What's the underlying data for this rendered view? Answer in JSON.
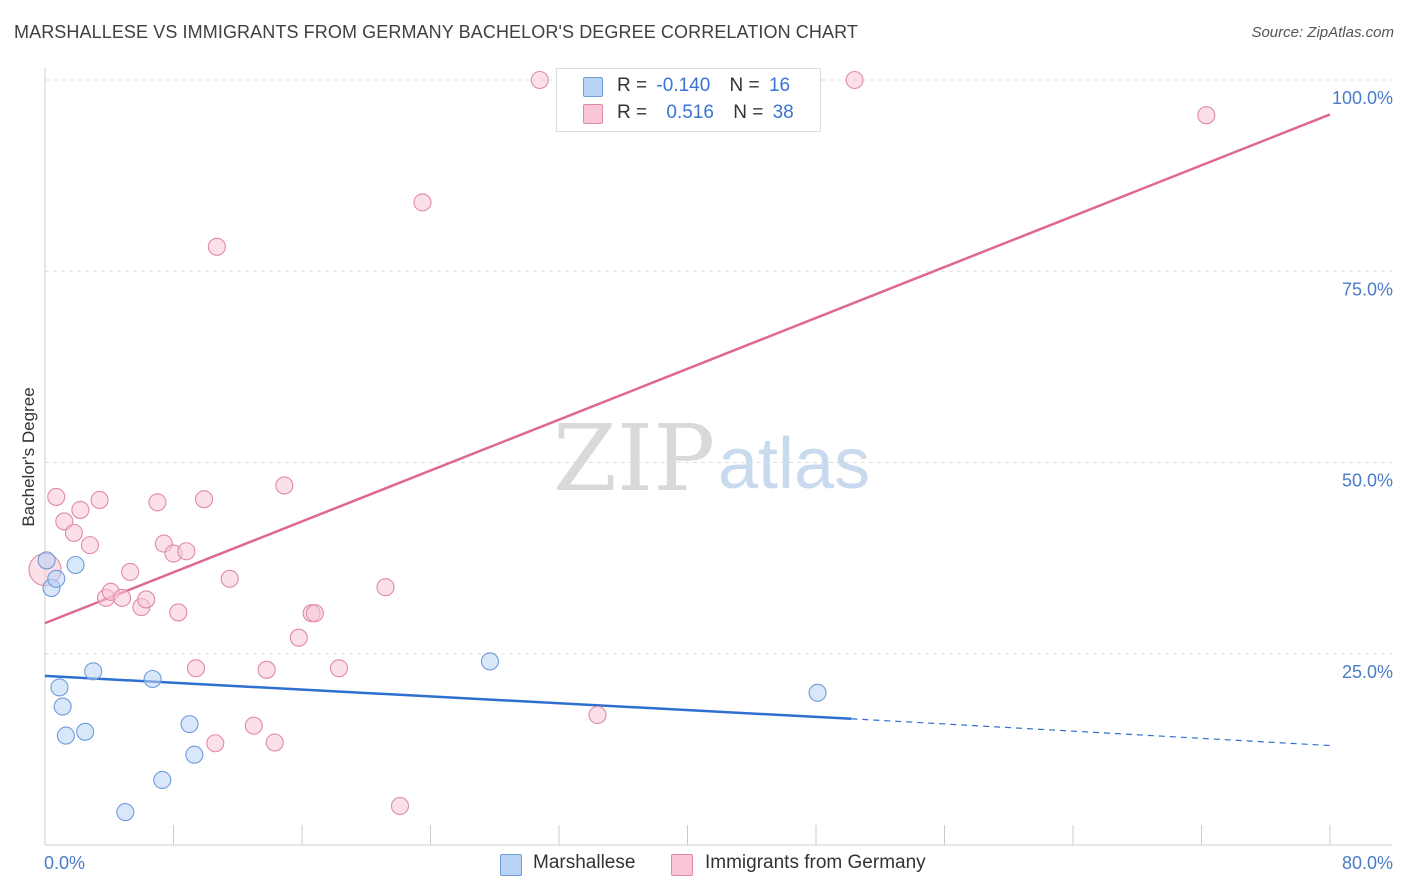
{
  "title": "MARSHALLESE VS IMMIGRANTS FROM GERMANY BACHELOR'S DEGREE CORRELATION CHART",
  "source": "Source: ZipAtlas.com",
  "watermark": {
    "zip": "ZIP",
    "atlas": "atlas"
  },
  "legend": {
    "rows": [
      {
        "r_label": "R =",
        "r_value": "-0.140",
        "n_label": "N =",
        "n_value": "16",
        "color": "#b9d3f5",
        "border": "#6f9bd9"
      },
      {
        "r_label": "R =",
        "r_value": "0.516",
        "n_label": "N =",
        "n_value": "38",
        "color": "#f8c6d6",
        "border": "#e08aa8"
      }
    ]
  },
  "bottom_legend": [
    {
      "label": "Marshallese",
      "color": "#b9d3f5",
      "border": "#6f9bd9"
    },
    {
      "label": "Immigrants from Germany",
      "color": "#f8c6d6",
      "border": "#e08aa8"
    }
  ],
  "chart_data": {
    "type": "scatter",
    "title": "MARSHALLESE VS IMMIGRANTS FROM GERMANY BACHELOR'S DEGREE CORRELATION CHART",
    "xlabel": "",
    "ylabel": "Bachelor's Degree",
    "xlim": [
      0,
      80
    ],
    "ylim": [
      0,
      100
    ],
    "x_tick_labels": [
      {
        "value": 0,
        "label": "0.0%"
      },
      {
        "value": 80,
        "label": "80.0%"
      }
    ],
    "y_tick_labels": [
      {
        "value": 25,
        "label": "25.0%"
      },
      {
        "value": 50,
        "label": "50.0%"
      },
      {
        "value": 75,
        "label": "75.0%"
      },
      {
        "value": 100,
        "label": "100.0%"
      }
    ],
    "series": [
      {
        "name": "Marshallese",
        "color": "#6f9bd9",
        "fill": "#b9d3f5",
        "points": [
          [
            0.1,
            37.2
          ],
          [
            0.4,
            33.6
          ],
          [
            0.7,
            34.8
          ],
          [
            1.9,
            36.6
          ],
          [
            0.9,
            20.6
          ],
          [
            1.1,
            18.1
          ],
          [
            1.3,
            14.3
          ],
          [
            2.5,
            14.8
          ],
          [
            3.0,
            22.7
          ],
          [
            6.7,
            21.7
          ],
          [
            9.0,
            15.8
          ],
          [
            9.3,
            11.8
          ],
          [
            7.3,
            8.5
          ],
          [
            5.0,
            4.3
          ],
          [
            27.7,
            24.0
          ],
          [
            48.1,
            19.9
          ]
        ],
        "trend": {
          "x0": 0,
          "y0": 22.1,
          "x1": 50.2,
          "y1": 16.5,
          "dash_x1": 80,
          "dash_y1": 13.0
        }
      },
      {
        "name": "Immigrants from Germany",
        "color": "#e08aa8",
        "fill": "#f8c6d6",
        "points": [
          [
            0.0,
            36.0
          ],
          [
            0.7,
            45.5
          ],
          [
            1.2,
            42.3
          ],
          [
            1.8,
            40.8
          ],
          [
            2.2,
            43.8
          ],
          [
            2.8,
            39.2
          ],
          [
            3.4,
            45.1
          ],
          [
            3.8,
            32.3
          ],
          [
            4.1,
            33.1
          ],
          [
            4.8,
            32.3
          ],
          [
            5.3,
            35.7
          ],
          [
            6.0,
            31.1
          ],
          [
            6.3,
            32.1
          ],
          [
            7.0,
            44.8
          ],
          [
            7.4,
            39.4
          ],
          [
            8.0,
            38.1
          ],
          [
            8.3,
            30.4
          ],
          [
            8.8,
            38.4
          ],
          [
            9.4,
            23.1
          ],
          [
            9.9,
            45.2
          ],
          [
            10.6,
            13.3
          ],
          [
            10.7,
            78.2
          ],
          [
            11.5,
            34.8
          ],
          [
            13.0,
            15.6
          ],
          [
            13.8,
            22.9
          ],
          [
            14.3,
            13.4
          ],
          [
            14.9,
            47.0
          ],
          [
            15.8,
            27.1
          ],
          [
            16.6,
            30.3
          ],
          [
            16.8,
            30.3
          ],
          [
            18.3,
            23.1
          ],
          [
            21.2,
            33.7
          ],
          [
            22.1,
            5.1
          ],
          [
            23.5,
            84.0
          ],
          [
            30.8,
            100.0
          ],
          [
            34.4,
            17.0
          ],
          [
            50.4,
            100.0
          ],
          [
            72.3,
            95.4
          ]
        ],
        "trend": {
          "x0": 0,
          "y0": 29.0,
          "x1": 80,
          "y1": 95.5
        }
      }
    ]
  }
}
